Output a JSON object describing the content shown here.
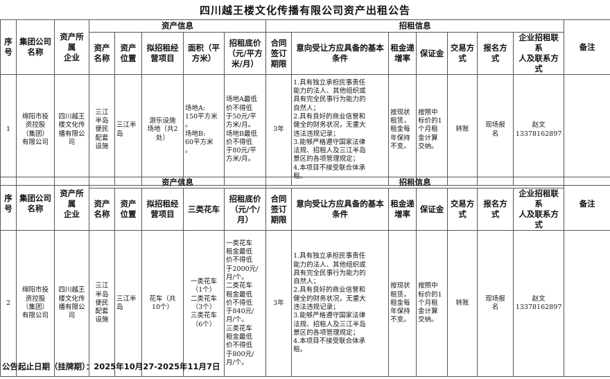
{
  "title": "四川越王楼文化传播有限公司资产出租公告",
  "group_labels": {
    "asset_info": "资产信息",
    "lease_info": "招租信息"
  },
  "sections": [
    {
      "headers": [
        "序\n号",
        "集团公司\n名称",
        "资产所属\n企业",
        "资产\n名称",
        "资产\n位置",
        "拟招租经\n营项目",
        "面积（平\n方米）",
        "招租底价\n（元/平方\n米/月）",
        "合同\n签订\n期限",
        "意向受让方应具备的基本\n条件",
        "租金递\n增率",
        "保证金",
        "交易方\n式",
        "报名方\n式",
        "企业招租联系\n人及联系方式",
        "备注"
      ],
      "row": [
        "1",
        "绵阳市投\n资控股\n（集团）\n有限公司",
        "四川越王\n楼文化传\n播有限公\n司",
        "三江\n半岛\n便民\n配套\n设施",
        "三江半\n岛",
        "游乐设施\n场地（共2\n处）",
        "场地A:\n150平方米\n。\n场地B:\n60平方米\n。",
        "场地A最低\n价不得低\n于50元/平\n方米/月。\n场地B最低\n价不得低\n于80元/平\n方米/月。",
        "3年",
        "1.具有独立承担民事责任\n能力的法人、其他组织或\n具有完全民事行为能力的\n自然人；\n2.具有良好的商业信誉和\n健全的财务状况，无重大\n违法违规记录；\n3.能够严格遵守国家法律\n法规、招租人及三江半岛\n景区的各项管理规定；\n4.本项目不接受联合体承\n租。",
        "按现状\n租赁，\n租金每\n年保持\n不变。",
        "按照中\n标价的1\n个月租\n金计算\n交纳。",
        "转账",
        "现场报\n名",
        "赵文\n13378162897",
        ""
      ]
    },
    {
      "headers": [
        "序\n号",
        "集团公司\n名称",
        "资产所属\n企业",
        "资产\n名称",
        "资产\n位置",
        "拟招租经\n营项目",
        "三类花车",
        "招租底价\n（元/个/\n月）",
        "合同\n签订\n期限",
        "意向受让方应具备的基本\n条件",
        "租金递\n增率",
        "保证金",
        "交易方\n式",
        "报名方\n式",
        "企业招租联系\n人及联系方式",
        "备注"
      ],
      "row": [
        "2",
        "绵阳市投\n资控股\n（集团）\n有限公司",
        "四川越王\n楼文化传\n播有限公\n司",
        "三江\n半岛\n便民\n配套\n设施",
        "三江半\n岛",
        "花车（共\n10个）",
        "一类花车\n（1个）\n二类花车\n（3个）\n三类花车\n（6个）",
        "一类花车\n租金最低\n价不得低\n于2000元/\n月/个。\n二类花车\n租金最低\n价不得低\n于840元/\n月/个。\n三类花车\n租金最低\n价不得低\n于800元/\n月/个。",
        "3年",
        "1.具有独立承担民事责任\n能力的法人、其他组织或\n具有完全民事行为能力的\n自然人；\n2.具有良好的商业信誉和\n健全的财务状况，无重大\n违法违规记录；\n3.能够严格遵守国家法律\n法规、招租人及三江半岛\n景区的各项管理规定；\n4.本项目不接受联合体承\n租。",
        "按现状\n租赁，\n租金每\n年保持\n不变。",
        "按照中\n标价的1\n个月租\n金计算\n交纳。",
        "转账",
        "现场报\n名",
        "赵文\n13378162897",
        ""
      ]
    }
  ],
  "footer": "公告起止日期（挂牌期）：2025年10月27-2025年11月7日"
}
